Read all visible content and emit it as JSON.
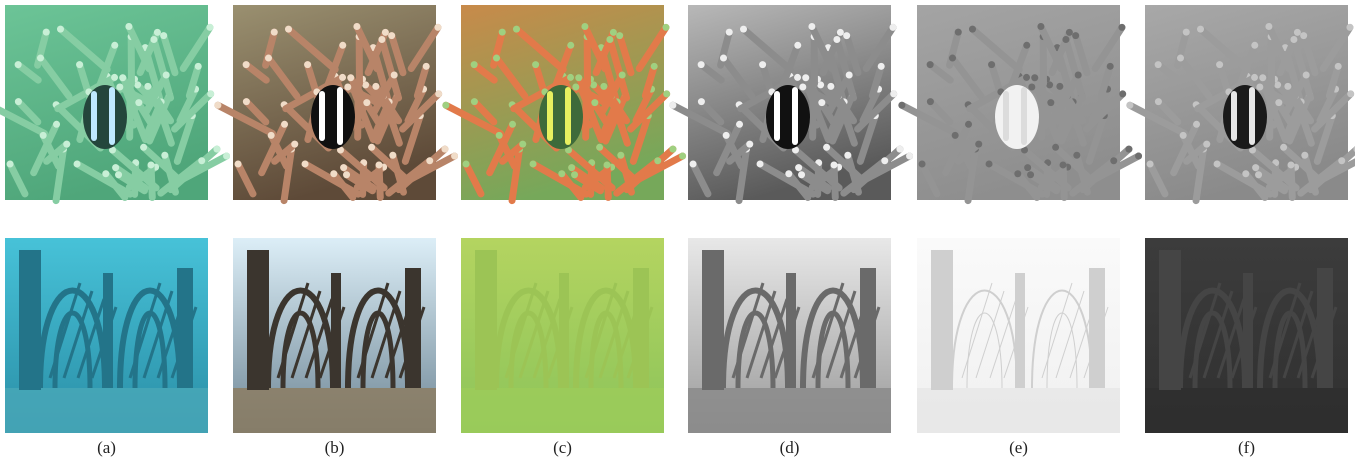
{
  "labels": [
    "(a)",
    "(b)",
    "(c)",
    "(d)",
    "(e)",
    "(f)"
  ]
}
